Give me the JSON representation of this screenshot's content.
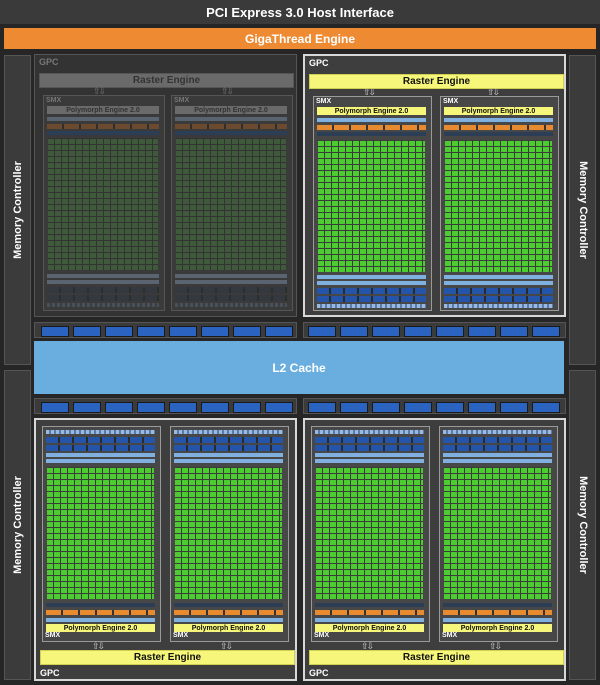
{
  "top_bar": "PCI Express 3.0 Host Interface",
  "engine_bar": "GigaThread Engine",
  "memory_controller_label": "Memory Controller",
  "cache_label": "L2 Cache",
  "gpc_label": "GPC",
  "raster_label": "Raster Engine",
  "smx_label": "SMX",
  "polymorph_label": "Polymorph Engine 2.0",
  "arrows": "⇧⇩",
  "colors": {
    "orange": "#ee8a32",
    "yellow": "#f6f67a",
    "green": "#4ccc30",
    "blue": "#2a63c0",
    "light_blue": "#6aaee0"
  }
}
